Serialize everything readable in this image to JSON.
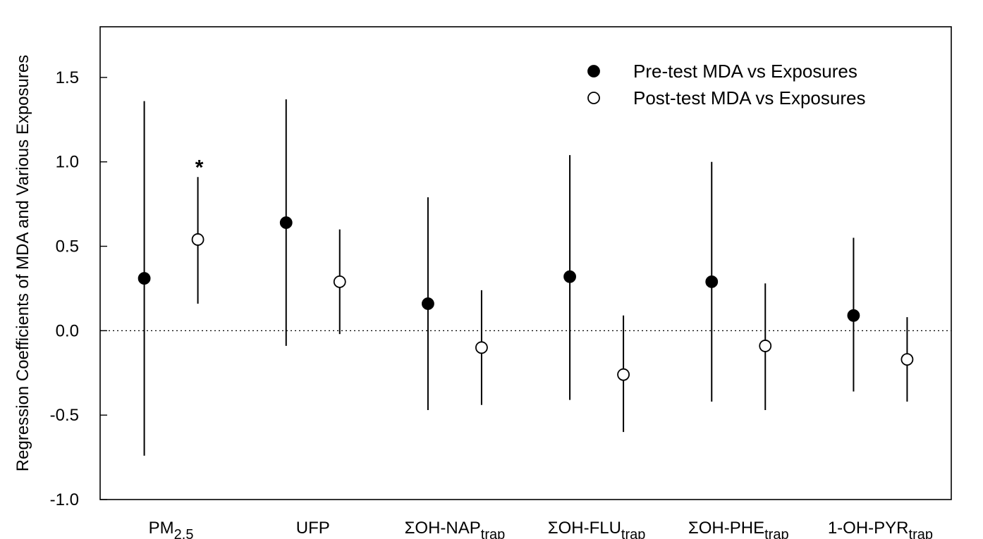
{
  "chart_data": {
    "type": "scatter",
    "title": "",
    "ylabel": "Regression Coefficients of MDA and Various Exposures",
    "xlabel": "",
    "ylim": [
      -1.0,
      1.8
    ],
    "yticks": [
      -1.0,
      -0.5,
      0.0,
      0.5,
      1.0,
      1.5
    ],
    "ytick_labels": [
      "-1.0",
      "-0.5",
      "0.0",
      "0.5",
      "1.0",
      "1.5"
    ],
    "zero_line": true,
    "grid": false,
    "legend_position": "top-right",
    "categories": [
      {
        "main": "PM",
        "sub": "2.5"
      },
      {
        "main": "UFP",
        "sub": ""
      },
      {
        "main": "ΣOH-NAP",
        "sub": "trap"
      },
      {
        "main": "ΣOH-FLU",
        "sub": "trap"
      },
      {
        "main": "ΣOH-PHE",
        "sub": "trap"
      },
      {
        "main": "1-OH-PYR",
        "sub": "trap"
      }
    ],
    "series": [
      {
        "name": "Pre-test MDA vs Exposures",
        "marker": "filled",
        "values": [
          0.31,
          0.64,
          0.16,
          0.32,
          0.29,
          0.09
        ],
        "lower": [
          -0.74,
          -0.09,
          -0.47,
          -0.41,
          -0.42,
          -0.36
        ],
        "upper": [
          1.36,
          1.37,
          0.79,
          1.04,
          1.0,
          0.55
        ]
      },
      {
        "name": "Post-test MDA vs Exposures",
        "marker": "open",
        "values": [
          0.54,
          0.29,
          -0.1,
          -0.26,
          -0.09,
          -0.17
        ],
        "lower": [
          0.16,
          -0.02,
          -0.44,
          -0.6,
          -0.47,
          -0.42
        ],
        "upper": [
          0.91,
          0.6,
          0.24,
          0.09,
          0.28,
          0.08
        ]
      }
    ],
    "annotations": [
      {
        "text": "*",
        "category_index": 0,
        "series_index": 1
      }
    ]
  }
}
